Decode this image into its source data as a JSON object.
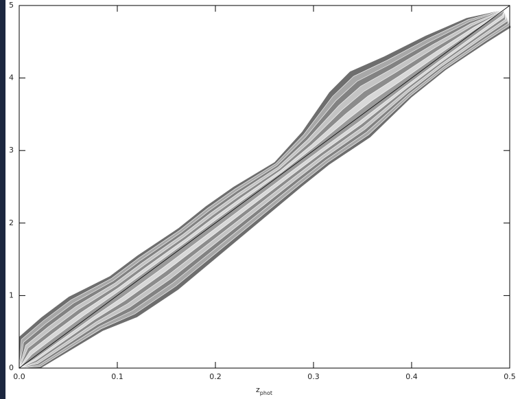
{
  "chart_data": {
    "type": "contour",
    "xlabel": {
      "main": "z",
      "sub": "phot"
    },
    "xlim": [
      0,
      0.5
    ],
    "xticks": [
      {
        "value": 0,
        "label": "0.0"
      },
      0.1,
      0.2,
      0.3,
      0.4,
      0.5
    ],
    "ylim": [
      0,
      5
    ],
    "yticks": [
      0,
      1,
      2,
      3,
      4,
      5
    ],
    "line": {
      "x": [
        0,
        0.5
      ],
      "values": [
        0,
        5
      ],
      "color": "#000000"
    }
  }
}
